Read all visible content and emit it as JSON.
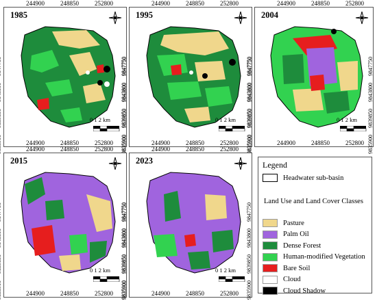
{
  "panels": [
    {
      "year": "1985"
    },
    {
      "year": "1995"
    },
    {
      "year": "2004"
    },
    {
      "year": "2015"
    },
    {
      "year": "2023"
    }
  ],
  "axes": {
    "x_ticks": [
      "244900",
      "248850",
      "252800"
    ],
    "y_ticks": [
      "9847750",
      "9843800",
      "9839850",
      "9835900"
    ]
  },
  "scale": {
    "label": "0 1 2 km"
  },
  "legend": {
    "title": "Legend",
    "basin_label": "Headwater sub-basin",
    "classes_header": "Land Use and Land Cover Classes",
    "classes": [
      {
        "label": "Pasture",
        "color": "#f0d78c"
      },
      {
        "label": "Palm Oil",
        "color": "#a064de"
      },
      {
        "label": "Dense Forest",
        "color": "#1e8c3c"
      },
      {
        "label": "Human-modified Vegetation",
        "color": "#32d250"
      },
      {
        "label": "Bare Soil",
        "color": "#e61e1e"
      },
      {
        "label": "Cloud",
        "color": "#ffffff"
      },
      {
        "label": "Cloud Shadow",
        "color": "#000000"
      }
    ]
  }
}
